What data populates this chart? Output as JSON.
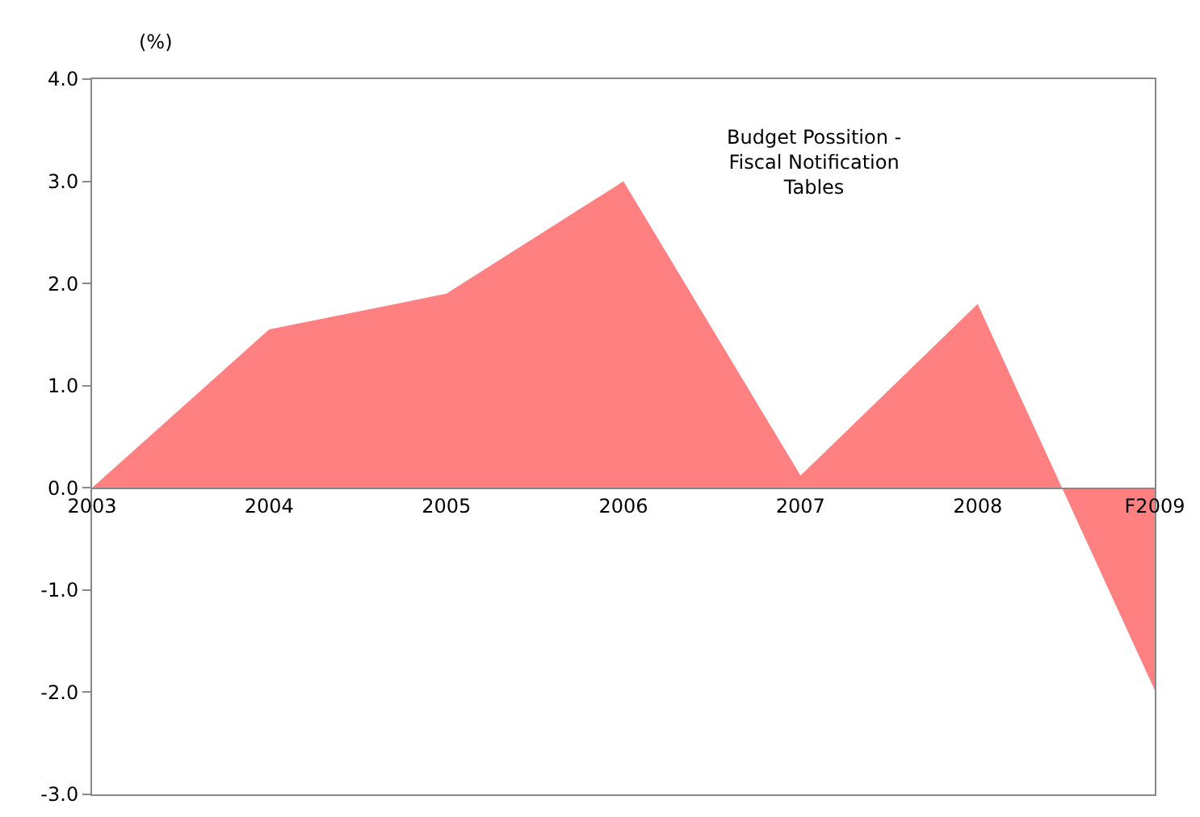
{
  "chart_data": {
    "type": "area",
    "ylabel": "(%)",
    "annotations": [
      "Budget Possition - Fiscal Notification Tables"
    ],
    "categories": [
      "2003",
      "2004",
      "2005",
      "2006",
      "2007",
      "2008",
      "F2009"
    ],
    "series": [
      {
        "color": "#ff8080",
        "values": [
          0,
          1.55,
          1.9,
          3.0,
          0.12,
          1.8,
          -1.98
        ]
      }
    ],
    "ylim": [
      -3,
      4
    ],
    "yticks": [
      {
        "value": -3,
        "label": "-3.0"
      },
      {
        "value": -2,
        "label": "-2.0"
      },
      {
        "value": -1,
        "label": "-1.0"
      },
      {
        "value": 0,
        "label": "0.0"
      },
      {
        "value": 1,
        "label": "1.0"
      },
      {
        "value": 2,
        "label": "2.0"
      },
      {
        "value": 3,
        "label": "3.0"
      },
      {
        "value": 4,
        "label": "4.0"
      }
    ],
    "grid": false,
    "legend": false
  }
}
